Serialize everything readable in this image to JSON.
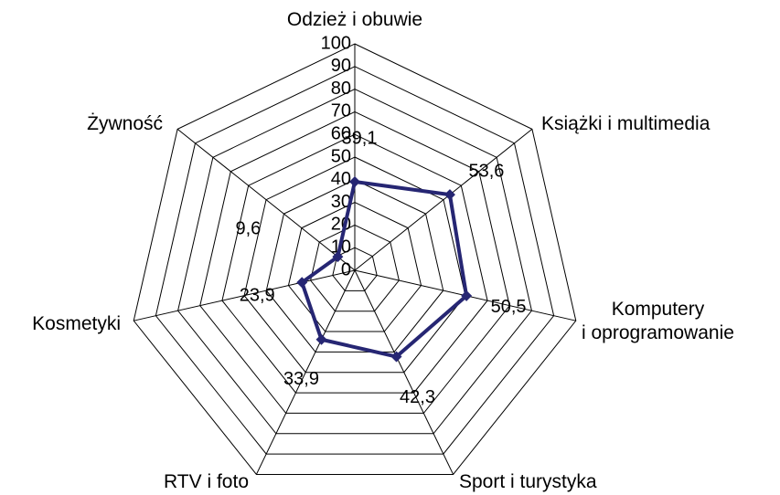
{
  "chart_data": {
    "type": "radar",
    "categories": [
      "Odzież i obuwie",
      "Książki i multimedia",
      "Komputery\ni oprogramowanie",
      "Sport i turystyka",
      "RTV i foto",
      "Kosmetyki",
      "Żywność"
    ],
    "series": [
      {
        "color": "#262673",
        "values": [
          39.1,
          53.6,
          50.5,
          42.3,
          33.9,
          23.9,
          9.6
        ],
        "value_labels": [
          "39,1",
          "53,6",
          "50,5",
          "42,3",
          "33,9",
          "23,9",
          "9,6"
        ]
      }
    ],
    "ylim": [
      0,
      100
    ],
    "yticks": [
      0,
      10,
      20,
      30,
      40,
      50,
      60,
      70,
      80,
      90,
      100
    ],
    "grid": true
  }
}
